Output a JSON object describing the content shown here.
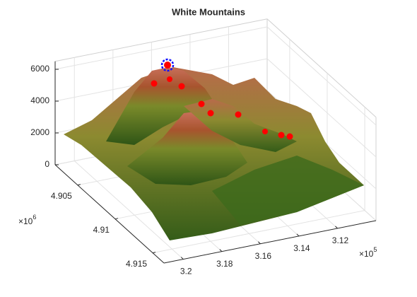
{
  "chart_data": {
    "type": "surface3d",
    "title": "White Mountains",
    "xlim": [
      310000,
      321000
    ],
    "xticks": [
      {
        "value": 312000,
        "label": "3.12"
      },
      {
        "value": 314000,
        "label": "3.14"
      },
      {
        "value": 316000,
        "label": "3.16"
      },
      {
        "value": 318000,
        "label": "3.18"
      },
      {
        "value": 320000,
        "label": "3.2"
      }
    ],
    "x_exponent": {
      "base": "×10",
      "power": "5"
    },
    "ylim": [
      4902000,
      4916500
    ],
    "yticks": [
      {
        "value": 4905000,
        "label": "4.905"
      },
      {
        "value": 4910000,
        "label": "4.91"
      },
      {
        "value": 4915000,
        "label": "4.915"
      }
    ],
    "y_exponent": {
      "base": "×10",
      "power": "6"
    },
    "zlim": [
      0,
      6500
    ],
    "zticks": [
      0,
      2000,
      4000,
      6000
    ],
    "grid": true
  }
}
